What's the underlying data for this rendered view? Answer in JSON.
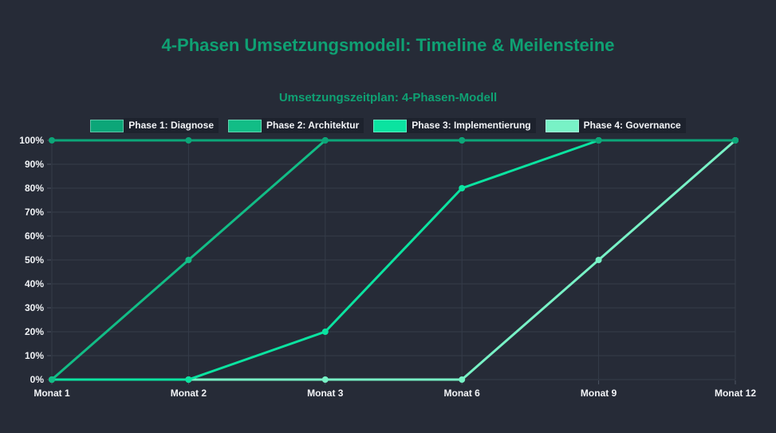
{
  "page": {
    "background": "#262b37"
  },
  "header": {
    "title": "4-Phasen Umsetzungsmodell: Timeline & Meilensteine",
    "title_color": "#0fa173"
  },
  "chart_data": {
    "type": "line",
    "title": "Umsetzungszeitplan: 4-Phasen-Modell",
    "title_color": "#0fa173",
    "categories": [
      "Monat 1",
      "Monat 2",
      "Monat 3",
      "Monat 6",
      "Monat 9",
      "Monat 12"
    ],
    "series": [
      {
        "name": "Phase 1: Diagnose",
        "color": "#0ca678",
        "values": [
          100,
          100,
          100,
          100,
          100,
          100
        ]
      },
      {
        "name": "Phase 2: Architektur",
        "color": "#12bd86",
        "values": [
          0,
          50,
          100,
          100,
          100,
          100
        ]
      },
      {
        "name": "Phase 3: Implementierung",
        "color": "#0be3a0",
        "values": [
          0,
          0,
          20,
          80,
          100,
          100
        ]
      },
      {
        "name": "Phase 4: Governance",
        "color": "#78f2c6",
        "values": [
          0,
          0,
          0,
          0,
          50,
          100
        ]
      }
    ],
    "y_ticks": [
      "0%",
      "10%",
      "20%",
      "30%",
      "40%",
      "50%",
      "60%",
      "70%",
      "80%",
      "90%",
      "100%"
    ],
    "ylim": [
      0,
      100
    ],
    "grid": true,
    "legend_position": "top",
    "xlabel": "",
    "ylabel": ""
  },
  "style_colors": {
    "grid_line": "#353c49",
    "tick_mark": "#4d5563",
    "axis_label": "#f2f4f7",
    "legend_chip_bg": "#1d222d"
  }
}
